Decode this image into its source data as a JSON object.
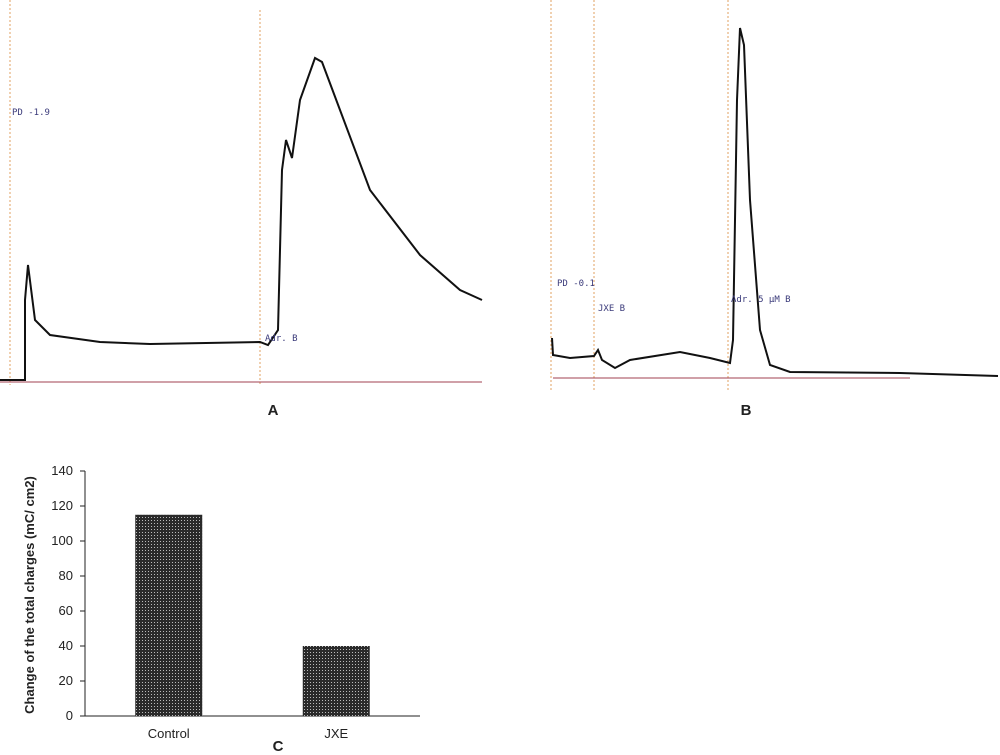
{
  "trace_a": {
    "panel_label": "A",
    "annotations": [
      "PD -1.9",
      "Adr. B"
    ]
  },
  "trace_b": {
    "panel_label": "B",
    "annotations": [
      "PD -0.1",
      "JXE B",
      "Adr. 5 μM B"
    ]
  },
  "chart_data": {
    "type": "bar",
    "panel_label": "C",
    "y_label": "Change of the total charges (mC/ cm2)",
    "categories": [
      "Control",
      "JXE"
    ],
    "values": [
      115,
      40
    ],
    "color": "#2a2a2a",
    "ylim": [
      0,
      140
    ],
    "yticks": [
      0,
      20,
      40,
      60,
      80,
      100,
      120,
      140
    ]
  }
}
